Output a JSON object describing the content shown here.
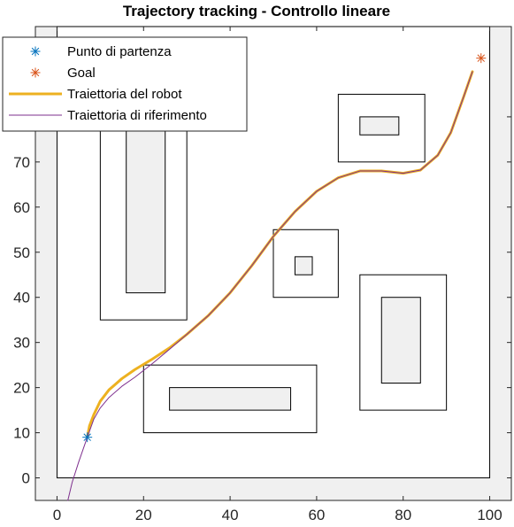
{
  "chart_data": {
    "type": "line",
    "title": "Trajectory tracking - Controllo lineare",
    "xlabel": "",
    "ylabel": "",
    "xlim": [
      -5,
      105
    ],
    "ylim": [
      -5,
      100
    ],
    "xticks": [
      0,
      20,
      40,
      60,
      80,
      100
    ],
    "yticks": [
      0,
      10,
      20,
      30,
      40,
      50,
      60,
      70,
      80
    ],
    "xtick_labels": [
      "0",
      "20",
      "40",
      "60",
      "80",
      "100"
    ],
    "ytick_labels": [
      "0",
      "10",
      "20",
      "30",
      "40",
      "50",
      "60",
      "70",
      "80"
    ],
    "grid": false,
    "legend_position": "top-left",
    "background_color": "#f0f0f0",
    "workspace": {
      "x": [
        0,
        100
      ],
      "y": [
        0,
        100
      ]
    },
    "obstacles": [
      {
        "outer": [
          10,
          35,
          30,
          87
        ],
        "inner": [
          16,
          41,
          25,
          80
        ]
      },
      {
        "outer": [
          65,
          70,
          85,
          85
        ],
        "inner": [
          70,
          76,
          79,
          80
        ]
      },
      {
        "outer": [
          50,
          40,
          65,
          55
        ],
        "inner": [
          55,
          45,
          59,
          49
        ]
      },
      {
        "outer": [
          70,
          15,
          90,
          45
        ],
        "inner": [
          75,
          21,
          84,
          40
        ]
      },
      {
        "outer": [
          20,
          10,
          60,
          25
        ],
        "inner": [
          26,
          15,
          54,
          20
        ]
      }
    ],
    "series": [
      {
        "name": "Punto di partenza",
        "type": "marker",
        "marker": "*",
        "color": "#0072BD",
        "points": [
          [
            7,
            9
          ]
        ]
      },
      {
        "name": "Goal",
        "type": "marker",
        "marker": "*",
        "color": "#D95319",
        "points": [
          [
            98,
            93
          ]
        ]
      },
      {
        "name": "Traiettoria del robot",
        "type": "line",
        "color": "#EDB120",
        "width": 3,
        "points": [
          [
            7,
            9
          ],
          [
            7.5,
            11.5
          ],
          [
            8.5,
            14
          ],
          [
            10,
            17
          ],
          [
            12,
            19.5
          ],
          [
            15,
            22
          ],
          [
            18,
            24
          ],
          [
            22,
            26.3
          ],
          [
            26,
            28.8
          ],
          [
            30,
            31.8
          ],
          [
            35,
            36
          ],
          [
            40,
            41
          ],
          [
            45,
            47
          ],
          [
            50,
            53.5
          ],
          [
            55,
            59
          ],
          [
            60,
            63.5
          ],
          [
            65,
            66.5
          ],
          [
            70,
            68
          ],
          [
            75,
            68
          ],
          [
            80,
            67.5
          ],
          [
            84,
            68.2
          ],
          [
            88,
            71.5
          ],
          [
            91,
            76.5
          ],
          [
            94,
            84.5
          ],
          [
            96,
            90
          ]
        ]
      },
      {
        "name": "Traiettoria di riferimento",
        "type": "line",
        "color": "#7E2F8E",
        "width": 1,
        "points": [
          [
            2.5,
            -5
          ],
          [
            3.5,
            -1
          ],
          [
            5,
            3.5
          ],
          [
            7,
            9
          ],
          [
            8.5,
            13
          ],
          [
            10,
            15.5
          ],
          [
            12,
            17.8
          ],
          [
            15,
            20.3
          ],
          [
            18,
            22.3
          ],
          [
            22,
            25.3
          ],
          [
            26,
            28.5
          ],
          [
            30,
            31.8
          ],
          [
            35,
            36
          ],
          [
            40,
            41
          ],
          [
            45,
            47
          ],
          [
            50,
            53.5
          ],
          [
            55,
            59
          ],
          [
            60,
            63.5
          ],
          [
            65,
            66.5
          ],
          [
            70,
            68
          ],
          [
            75,
            68
          ],
          [
            80,
            67.5
          ],
          [
            84,
            68.2
          ],
          [
            88,
            71.5
          ],
          [
            91,
            76.5
          ],
          [
            94,
            84.5
          ],
          [
            96,
            90
          ]
        ]
      }
    ]
  }
}
